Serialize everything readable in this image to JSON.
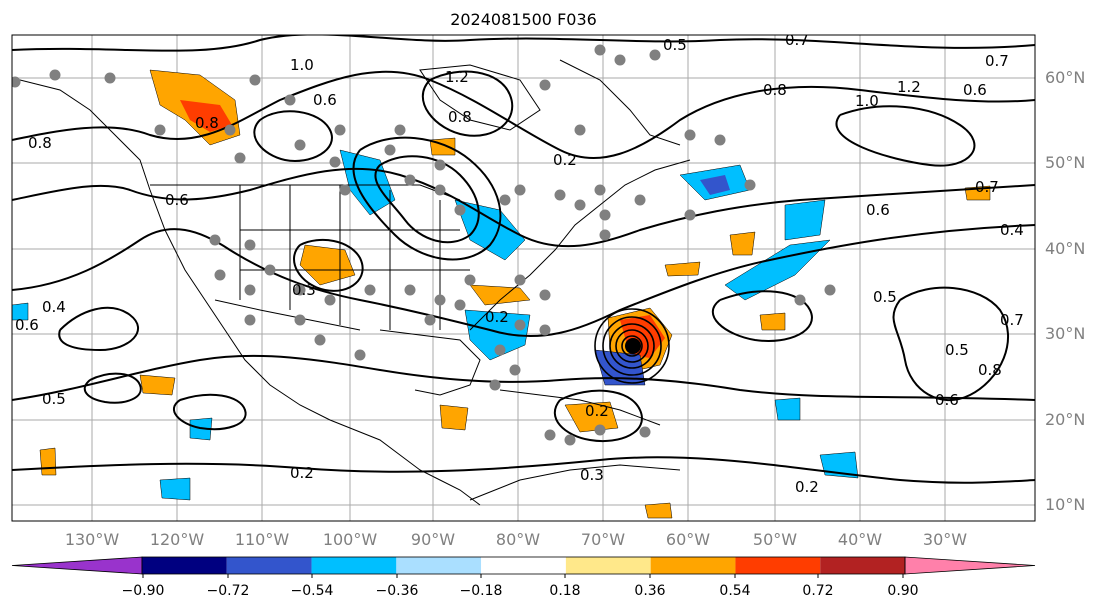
{
  "title": "2024081500 F036",
  "lon_ticks": [
    "130°W",
    "120°W",
    "110°W",
    "100°W",
    "90°W",
    "80°W",
    "70°W",
    "60°W",
    "50°W",
    "40°W",
    "30°W"
  ],
  "lat_ticks": [
    "60°N",
    "50°N",
    "40°N",
    "30°N",
    "20°N",
    "10°N"
  ],
  "contour_labels": [
    "0.8",
    "0.8",
    "1.0",
    "1.2",
    "0.8",
    "0.6",
    "0.6",
    "0.4",
    "0.6",
    "0.5",
    "0.2",
    "0.3",
    "0.2",
    "0.2",
    "0.5",
    "0.7",
    "0.8",
    "1.0",
    "1.2",
    "0.6",
    "0.7",
    "0.6",
    "0.4",
    "0.7",
    "0.5",
    "0.6",
    "0.5",
    "0.8",
    "0.7",
    "0.2",
    "0.2",
    "0.3"
  ],
  "colorbar": {
    "ticks": [
      "−0.90",
      "−0.72",
      "−0.54",
      "−0.36",
      "−0.18",
      "0.18",
      "0.36",
      "0.54",
      "0.72",
      "0.90"
    ],
    "colors": [
      "#9933cc",
      "#000080",
      "#3355cc",
      "#00bfff",
      "#aadfff",
      "#ffffff",
      "#ffe88a",
      "#ffa500",
      "#ff3d00",
      "#b22222",
      "#ff80aa"
    ]
  },
  "colors": {
    "land_outline": "#000000",
    "grid": "#aaaaaa",
    "marker": "#808080"
  }
}
